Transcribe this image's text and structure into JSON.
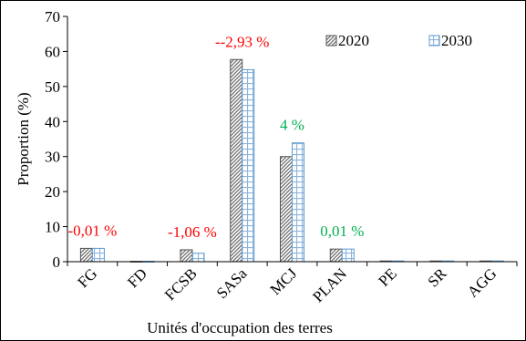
{
  "chart_data": {
    "type": "bar",
    "xlabel": "Unités d'occupation des terres",
    "ylabel": "Proportion (%)",
    "ylim": [
      0,
      70
    ],
    "yticks": [
      0,
      10,
      20,
      30,
      40,
      50,
      60,
      70
    ],
    "grid": false,
    "legend_position": "top-right",
    "categories": [
      "FG",
      "FD",
      "FCSB",
      "SASa",
      "MCJ",
      "PLAN",
      "PE",
      "SR",
      "AGG"
    ],
    "series": [
      {
        "name": "2020",
        "values": [
          3.8,
          0.1,
          3.4,
          57.7,
          30.0,
          3.6,
          0.2,
          0.2,
          0.2
        ],
        "pattern": "diagonal-hatch",
        "color": "#7f7f7f"
      },
      {
        "name": "2030",
        "values": [
          3.8,
          0.1,
          2.4,
          54.8,
          33.9,
          3.6,
          0.2,
          0.2,
          0.2
        ],
        "pattern": "grid-blue",
        "color": "#9dc3e6"
      }
    ],
    "annotations": [
      {
        "category": "FG",
        "text": "-0,01 %",
        "color": "#ff0000"
      },
      {
        "category": "FCSB",
        "text": "-1,06 %",
        "color": "#ff0000"
      },
      {
        "category": "SASa",
        "text": "--2,93 %",
        "color": "#ff0000"
      },
      {
        "category": "MCJ",
        "text": "4 %",
        "color": "#00b050"
      },
      {
        "category": "PLAN",
        "text": "0,01 %",
        "color": "#00b050"
      }
    ]
  }
}
